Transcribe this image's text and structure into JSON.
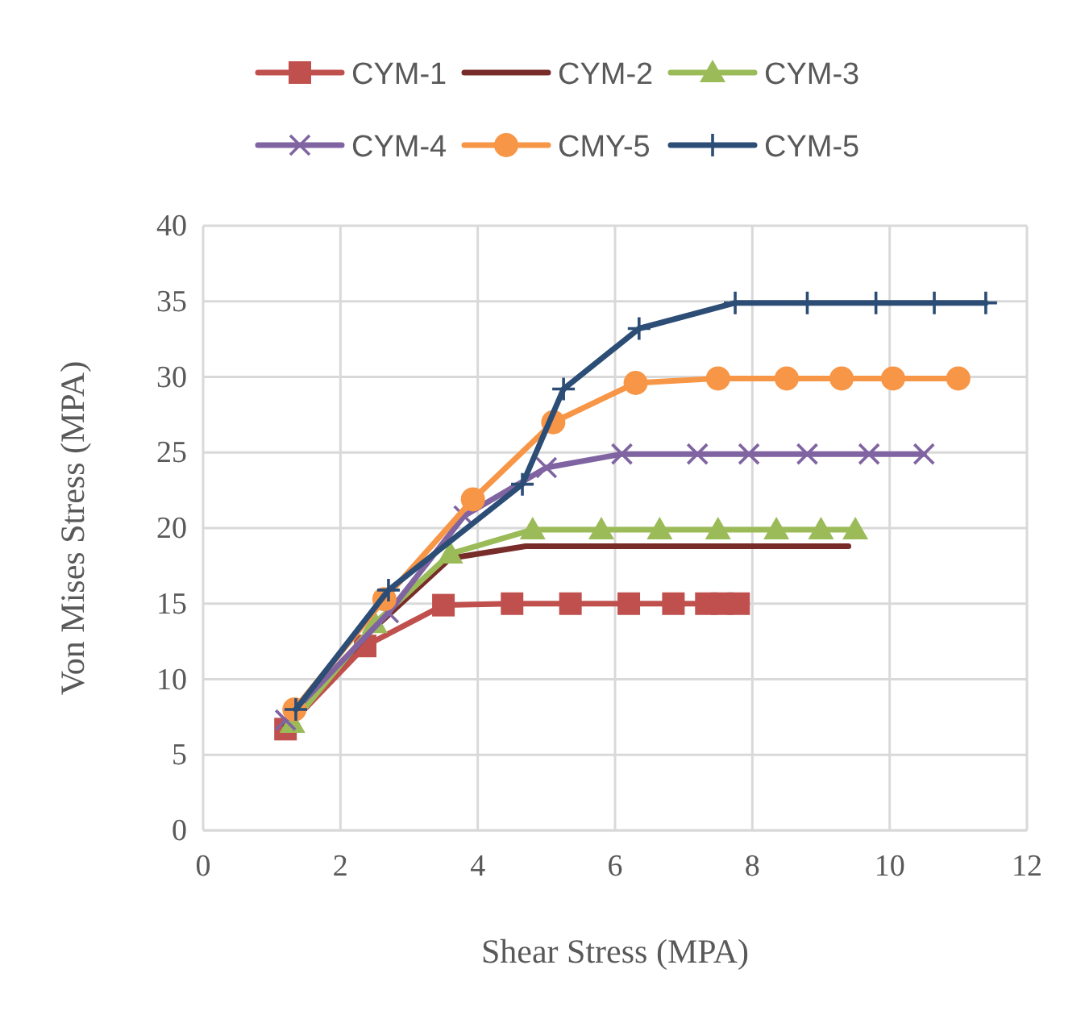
{
  "chart_data": {
    "type": "line",
    "xlabel": "Shear Stress (MPA)",
    "ylabel": "Von Mises Stress (MPA)",
    "xlim": [
      0,
      12
    ],
    "xticks": [
      0,
      2,
      4,
      6,
      8,
      10,
      12
    ],
    "ylim": [
      0,
      40
    ],
    "yticks": [
      0,
      5,
      10,
      15,
      20,
      25,
      30,
      35,
      40
    ],
    "grid": true,
    "legend": "top",
    "series": [
      {
        "name": "CYM-1",
        "color": "#c0504d",
        "marker": "square",
        "x": [
          1.2,
          2.36,
          3.5,
          4.5,
          5.35,
          6.2,
          6.85,
          7.33,
          7.56,
          7.8
        ],
        "values": [
          6.7,
          12.2,
          14.9,
          15,
          15,
          15,
          15,
          15,
          15,
          15
        ]
      },
      {
        "name": "CYM-2",
        "color": "#772c2a",
        "marker": "none",
        "x": [
          1.2,
          2.4,
          3.6,
          4.7,
          9.4
        ],
        "values": [
          6.9,
          13,
          18,
          18.8,
          18.8
        ]
      },
      {
        "name": "CYM-3",
        "color": "#9bbb59",
        "marker": "triangle",
        "x": [
          1.3,
          2.5,
          3.6,
          4.8,
          5.8,
          6.65,
          7.5,
          8.35,
          9,
          9.5
        ],
        "values": [
          7.1,
          13.7,
          18.3,
          19.9,
          19.9,
          19.9,
          19.9,
          19.9,
          19.9,
          19.9
        ]
      },
      {
        "name": "CYM-4",
        "color": "#8064a2",
        "marker": "cross",
        "x": [
          1.2,
          2.7,
          3.8,
          5,
          6.1,
          7.2,
          7.95,
          8.8,
          9.7,
          10.5
        ],
        "values": [
          7.3,
          14.4,
          20.8,
          24,
          24.9,
          24.9,
          24.9,
          24.9,
          24.9,
          24.9
        ]
      },
      {
        "name": "CMY-5",
        "color": "#f79646",
        "marker": "circle",
        "x": [
          1.33,
          2.64,
          3.93,
          5.1,
          6.3,
          7.5,
          8.5,
          9.3,
          10.05,
          11
        ],
        "values": [
          8,
          15.3,
          21.9,
          27,
          29.6,
          29.9,
          29.9,
          29.9,
          29.9,
          29.9
        ]
      },
      {
        "name": "CYM-5",
        "color": "#2c4d75",
        "marker": "plus",
        "x": [
          1.35,
          2.7,
          4.65,
          5.25,
          6.35,
          7.75,
          8.8,
          9.8,
          10.65,
          11.4
        ],
        "values": [
          8,
          15.9,
          22.9,
          29.2,
          33.2,
          34.9,
          34.9,
          34.9,
          34.9,
          34.9
        ]
      }
    ]
  }
}
